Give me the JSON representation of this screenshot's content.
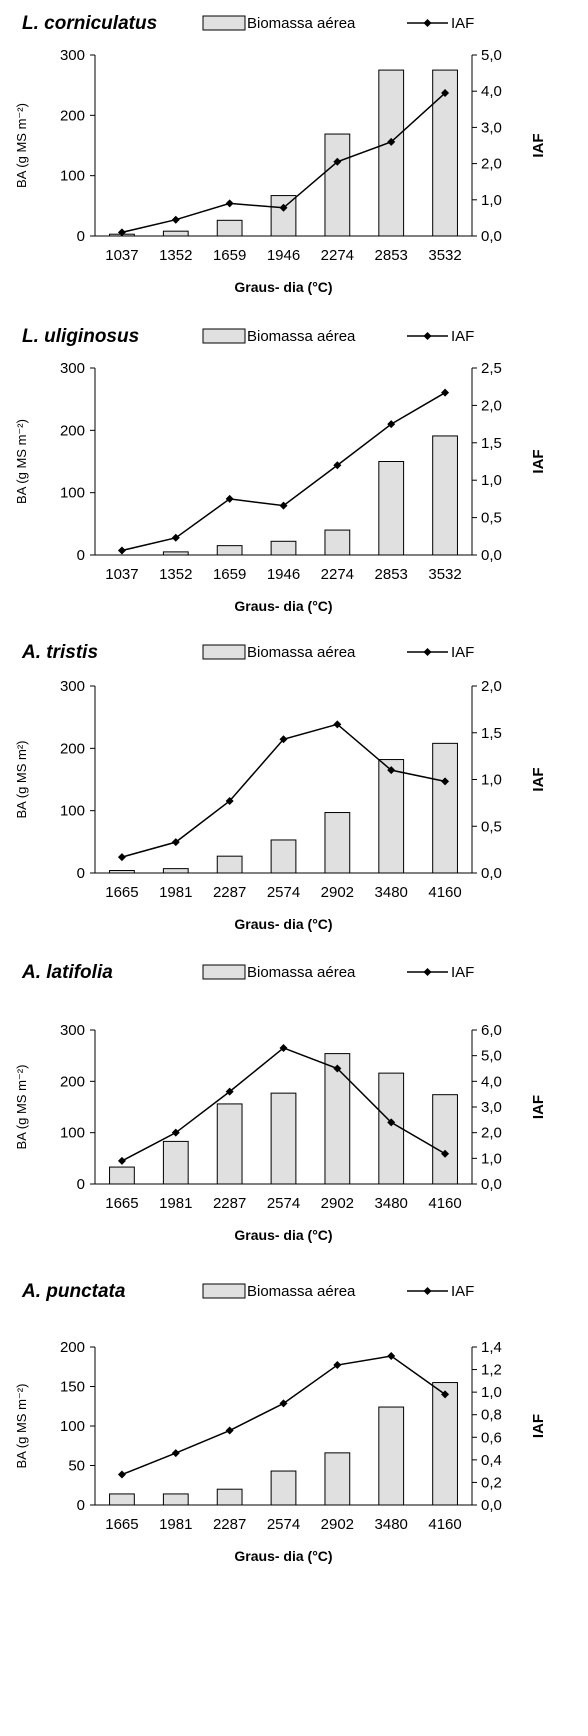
{
  "chart_data": [
    {
      "type": "bar",
      "title": "L. corniculatus",
      "categories": [
        "1037",
        "1352",
        "1659",
        "1946",
        "2274",
        "2853",
        "3532"
      ],
      "series": [
        {
          "name": "Biomassa aérea",
          "type": "bar",
          "axis": "left",
          "values": [
            3,
            8,
            26,
            67,
            169,
            275,
            275
          ]
        },
        {
          "name": "IAF",
          "type": "line",
          "axis": "right",
          "values": [
            0.1,
            0.45,
            0.9,
            0.78,
            2.05,
            2.6,
            3.95
          ]
        }
      ],
      "xlabel": "Graus- dia (°C)",
      "ylabel": "BA (g MS m⁻²)",
      "y2label": "IAF",
      "ylim": [
        0,
        300
      ],
      "yticks": [
        "0",
        "100",
        "200",
        "300"
      ],
      "y2lim": [
        0,
        5
      ],
      "y2ticks": [
        "0,0",
        "1,0",
        "2,0",
        "3,0",
        "4,0",
        "5,0"
      ],
      "colors": {
        "bar": "#e0e0e0",
        "line": "#000000"
      }
    },
    {
      "type": "bar",
      "title": "L. uliginosus",
      "categories": [
        "1037",
        "1352",
        "1659",
        "1946",
        "2274",
        "2853",
        "3532"
      ],
      "series": [
        {
          "name": "Biomassa aérea",
          "type": "bar",
          "axis": "left",
          "values": [
            0,
            5,
            15,
            22,
            40,
            150,
            191
          ]
        },
        {
          "name": "IAF",
          "type": "line",
          "axis": "right",
          "values": [
            0.06,
            0.23,
            0.75,
            0.66,
            1.2,
            1.75,
            2.17
          ]
        }
      ],
      "xlabel": "Graus- dia (°C)",
      "ylabel": "BA (g MS m⁻²)",
      "y2label": "IAF",
      "ylim": [
        0,
        300
      ],
      "yticks": [
        "0",
        "100",
        "200",
        "300"
      ],
      "y2lim": [
        0,
        2.5
      ],
      "y2ticks": [
        "0,0",
        "0,5",
        "1,0",
        "1,5",
        "2,0",
        "2,5"
      ],
      "colors": {
        "bar": "#e0e0e0",
        "line": "#000000"
      }
    },
    {
      "type": "bar",
      "title": "A. tristis",
      "categories": [
        "1665",
        "1981",
        "2287",
        "2574",
        "2902",
        "3480",
        "4160"
      ],
      "series": [
        {
          "name": "Biomassa aérea",
          "type": "bar",
          "axis": "left",
          "values": [
            4,
            7,
            27,
            53,
            97,
            182,
            208
          ]
        },
        {
          "name": "IAF",
          "type": "line",
          "axis": "right",
          "values": [
            0.17,
            0.33,
            0.77,
            1.43,
            1.59,
            1.1,
            0.98
          ]
        }
      ],
      "xlabel": "Graus- dia (°C)",
      "ylabel": "BA (g MS m²)",
      "y2label": "IAF",
      "ylim": [
        0,
        300
      ],
      "yticks": [
        "0",
        "100",
        "200",
        "300"
      ],
      "y2lim": [
        0,
        2
      ],
      "y2ticks": [
        "0,0",
        "0,5",
        "1,0",
        "1,5",
        "2,0"
      ],
      "colors": {
        "bar": "#e0e0e0",
        "line": "#000000"
      }
    },
    {
      "type": "bar",
      "title": "A. latifolia",
      "categories": [
        "1665",
        "1981",
        "2287",
        "2574",
        "2902",
        "3480",
        "4160"
      ],
      "series": [
        {
          "name": "Biomassa aérea",
          "type": "bar",
          "axis": "left",
          "values": [
            33,
            83,
            156,
            177,
            254,
            216,
            174
          ]
        },
        {
          "name": "IAF",
          "type": "line",
          "axis": "right",
          "values": [
            0.9,
            2.0,
            3.6,
            5.3,
            4.5,
            2.4,
            1.18
          ]
        }
      ],
      "xlabel": "Graus- dia (°C)",
      "ylabel": "BA (g MS m⁻²)",
      "y2label": "IAF",
      "ylim": [
        0,
        300
      ],
      "yticks": [
        "0",
        "100",
        "200",
        "300"
      ],
      "y2lim": [
        0,
        6
      ],
      "y2ticks": [
        "0,0",
        "1,0",
        "2,0",
        "3,0",
        "4,0",
        "5,0",
        "6,0"
      ],
      "colors": {
        "bar": "#e0e0e0",
        "line": "#000000"
      }
    },
    {
      "type": "bar",
      "title": "A. punctata",
      "categories": [
        "1665",
        "1981",
        "2287",
        "2574",
        "2902",
        "3480",
        "4160"
      ],
      "series": [
        {
          "name": "Biomassa aérea",
          "type": "bar",
          "axis": "left",
          "values": [
            14,
            14,
            20,
            43,
            66,
            124,
            155
          ]
        },
        {
          "name": "IAF",
          "type": "line",
          "axis": "right",
          "values": [
            0.27,
            0.46,
            0.66,
            0.9,
            1.24,
            1.32,
            0.98
          ]
        }
      ],
      "xlabel": "Graus- dia (°C)",
      "ylabel": "BA (g MS m⁻²)",
      "y2label": "IAF",
      "ylim": [
        0,
        200
      ],
      "yticks": [
        "0",
        "50",
        "100",
        "150",
        "200"
      ],
      "y2lim": [
        0,
        1.4
      ],
      "y2ticks": [
        "0,0",
        "0,2",
        "0,4",
        "0,6",
        "0,8",
        "1,0",
        "1,2",
        "1,4"
      ],
      "colors": {
        "bar": "#e0e0e0",
        "line": "#000000"
      }
    }
  ]
}
